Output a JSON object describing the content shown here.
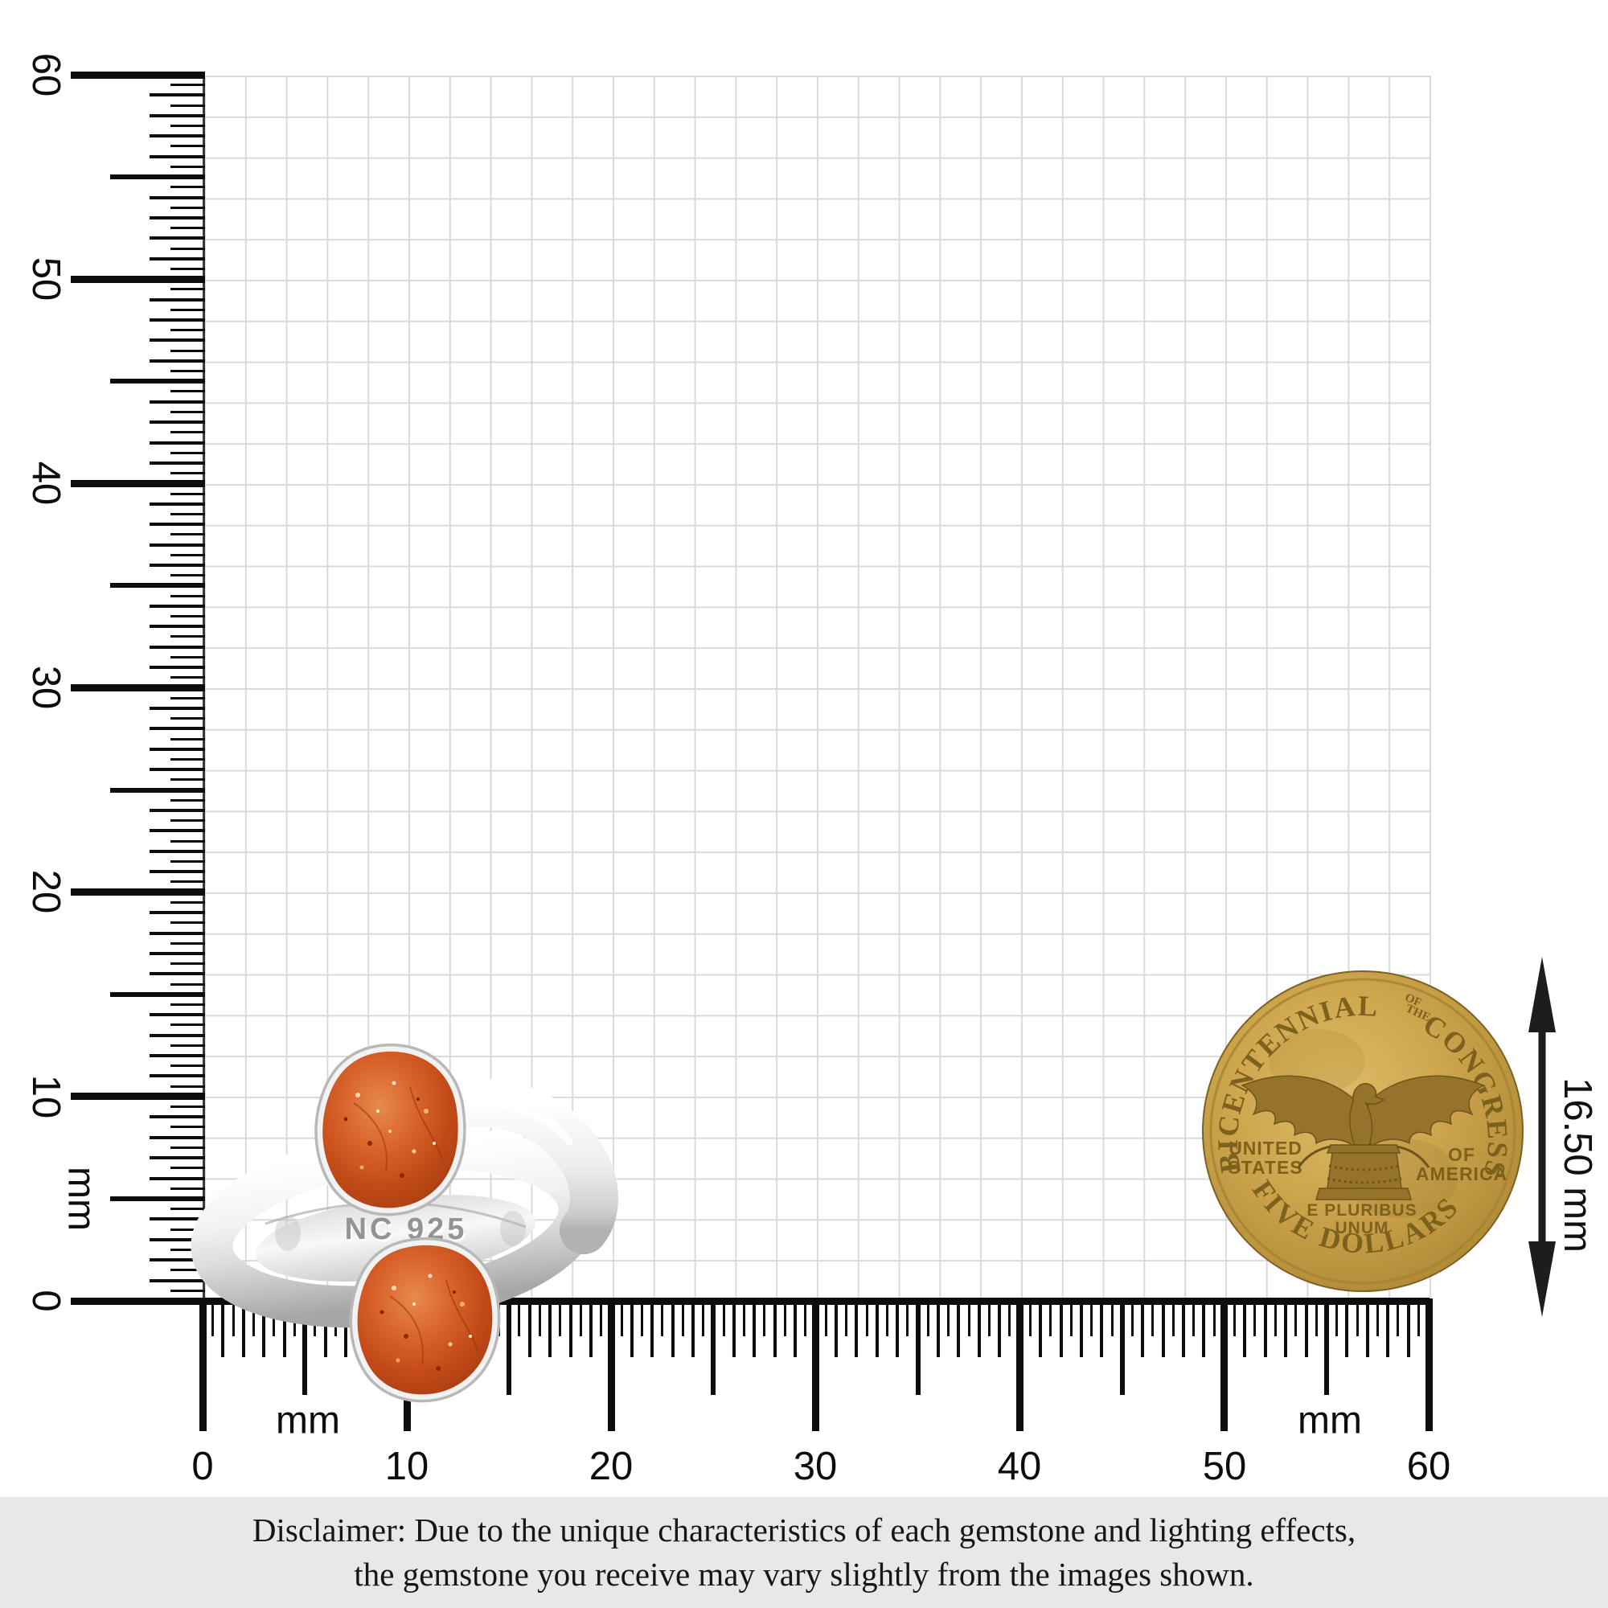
{
  "rulers": {
    "horizontal": {
      "tick_labels": [
        "0",
        "10",
        "20",
        "30",
        "40",
        "50",
        "60"
      ],
      "unit_label_left": "mm",
      "unit_label_right": "mm"
    },
    "vertical": {
      "tick_labels": [
        "60",
        "50",
        "40",
        "30",
        "20",
        "10",
        "0"
      ],
      "unit_label": "mm"
    }
  },
  "measurement": {
    "coin_diameter": "16.50 mm"
  },
  "ring": {
    "hallmark": "NC 925"
  },
  "coin": {
    "legend_left_arc": "BICENTENNIAL",
    "legend_small_line1": "OF",
    "legend_small_line2": "THE",
    "legend_right_arc": "CONGRESS",
    "field_left_line1": "UNITED",
    "field_left_line2": "STATES",
    "field_right_line1": "OF",
    "field_right_line2": "AMERICA",
    "motto_line1": "E PLURIBUS",
    "motto_line2": "UNUM",
    "denomination_arc": "FIVE DOLLARS"
  },
  "disclaimer": {
    "line1": "Disclaimer: Due to the unique characteristics of each gemstone and lighting effects,",
    "line2": "the gemstone you receive may vary slightly from the images shown."
  },
  "colors": {
    "grid_line": "#dadada",
    "ruler_ink": "#0d0d0d",
    "arrow": "#1d1d1d",
    "disclaimer_bg": "#e8e8e8",
    "coin_gold": "#c8a24c",
    "gem_orange": "#c8531f",
    "metal_silver": "#ececec"
  }
}
